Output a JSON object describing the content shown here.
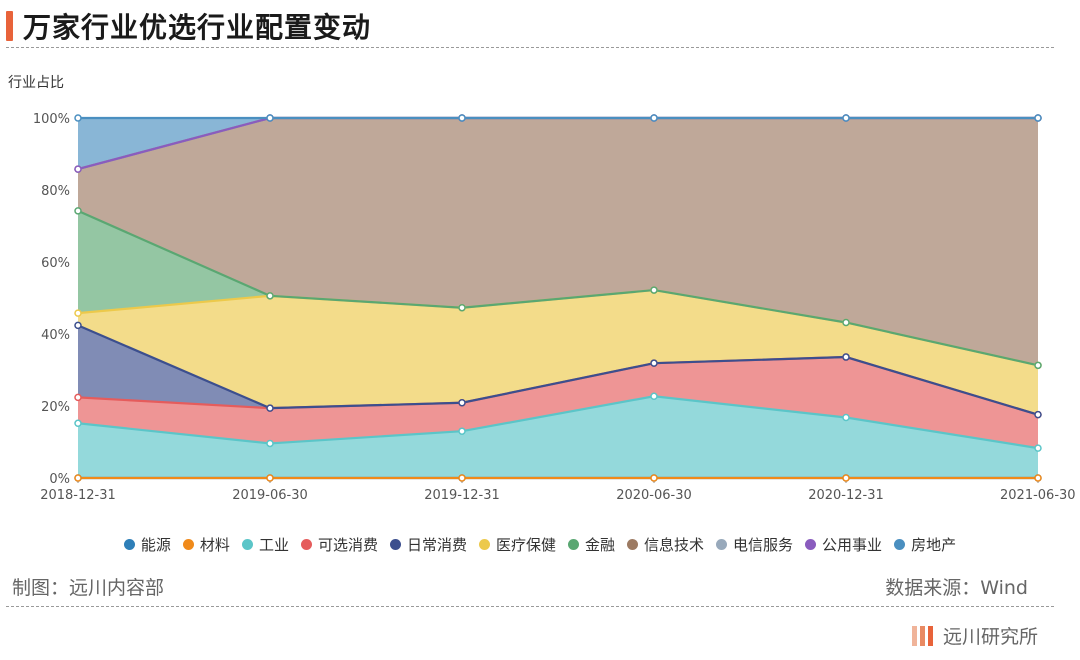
{
  "header": {
    "title": "万家行业优选行业配置变动"
  },
  "footer": {
    "made_by": "制图：远川内容部",
    "source": "数据来源：Wind",
    "brand": "远川研究所"
  },
  "colors": {
    "accent": "#e8633a",
    "brand_bars": [
      "#f0b49a",
      "#e98a63",
      "#e8633a"
    ]
  },
  "chart_data": {
    "type": "area",
    "stacked": true,
    "ylabel": "行业占比",
    "ylim": [
      0,
      100
    ],
    "y_ticks": [
      "0%",
      "20%",
      "40%",
      "60%",
      "80%",
      "100%"
    ],
    "x": [
      "2018-12-31",
      "2019-06-30",
      "2019-12-31",
      "2020-06-30",
      "2020-12-31",
      "2021-06-30"
    ],
    "grid": false,
    "legend_position": "bottom",
    "series": [
      {
        "name": "能源",
        "color": "#2e7fb8",
        "values": [
          0,
          0,
          0,
          0,
          0,
          0
        ]
      },
      {
        "name": "材料",
        "color": "#f08a1a",
        "values": [
          0,
          0,
          0,
          0,
          0,
          0
        ]
      },
      {
        "name": "工业",
        "color": "#5bc5c8",
        "values": [
          15.2,
          9.6,
          13.0,
          22.7,
          16.8,
          8.3
        ]
      },
      {
        "name": "可选消费",
        "color": "#e55c5c",
        "values": [
          7.2,
          9.8,
          7.9,
          9.2,
          16.8,
          9.3
        ]
      },
      {
        "name": "日常消费",
        "color": "#3c4f8e",
        "values": [
          20.0,
          0,
          0,
          0,
          0,
          0
        ]
      },
      {
        "name": "医疗保健",
        "color": "#ecc94b",
        "values": [
          3.4,
          31.2,
          26.4,
          20.3,
          9.6,
          13.7
        ]
      },
      {
        "name": "金融",
        "color": "#5aa772",
        "values": [
          28.4,
          0,
          0,
          0,
          0,
          0
        ]
      },
      {
        "name": "信息技术",
        "color": "#9c7a62",
        "values": [
          11.6,
          49.4,
          52.7,
          47.8,
          56.8,
          68.7
        ]
      },
      {
        "name": "电信服务",
        "color": "#98a9bb",
        "values": [
          0,
          0,
          0,
          0,
          0,
          0
        ]
      },
      {
        "name": "公用事业",
        "color": "#8a5cbe",
        "values": [
          0,
          0,
          0,
          0,
          0,
          0
        ]
      },
      {
        "name": "房地产",
        "color": "#4a8fc0",
        "values": [
          14.2,
          0,
          0,
          0,
          0,
          0
        ]
      }
    ]
  }
}
